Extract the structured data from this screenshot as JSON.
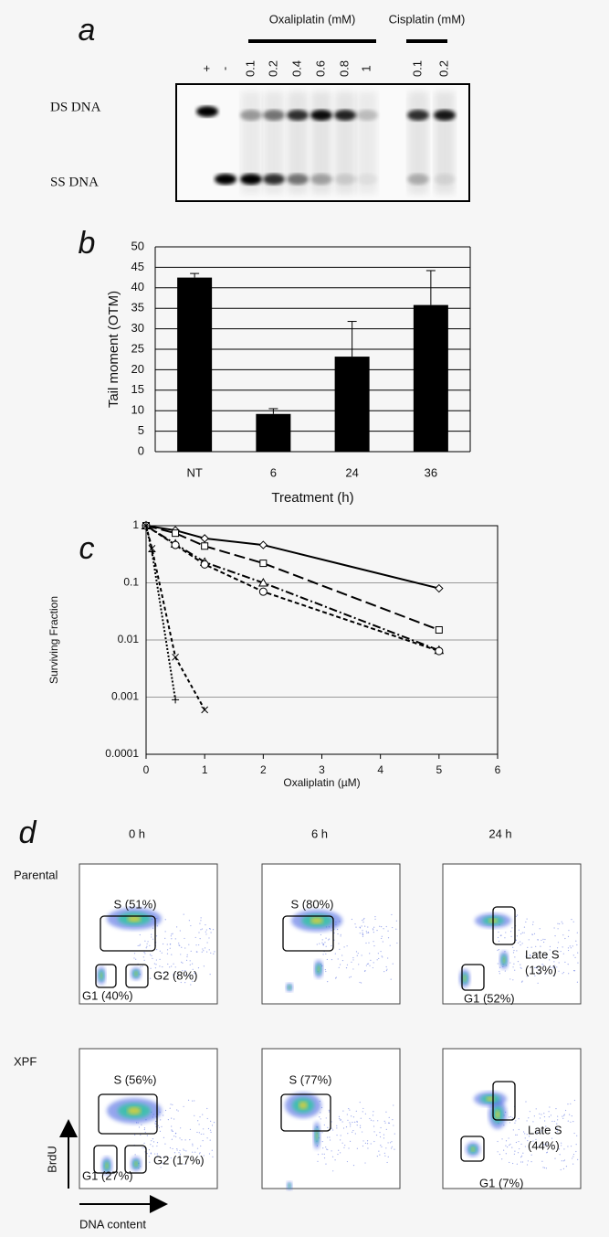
{
  "panel_labels": [
    "a",
    "b",
    "c",
    "d"
  ],
  "gel": {
    "groups": [
      "Oxaliplatin (mM)",
      "Cisplatin (mM)"
    ],
    "lanes": [
      "+",
      "-",
      "0.1",
      "0.2",
      "0.4",
      "0.6",
      "0.8",
      "1",
      "0.1",
      "0.2"
    ],
    "rows": [
      "DS DNA",
      "SS DNA"
    ]
  },
  "chart_data": [
    {
      "type": "bar",
      "categories": [
        "NT",
        "6",
        "24",
        "36"
      ],
      "values": [
        42.5,
        9.2,
        23.2,
        35.8
      ],
      "errors": [
        1,
        1.3,
        8.6,
        8.4
      ],
      "color": "#000000",
      "ylim": [
        0,
        50
      ],
      "yticks": [
        0,
        5,
        10,
        15,
        20,
        25,
        30,
        35,
        40,
        45,
        50
      ],
      "grid": true,
      "y_label": "Tail moment (OTM)",
      "x_label": "Treatment (h)"
    },
    {
      "type": "line",
      "log_y": true,
      "xlim": [
        0,
        6
      ],
      "xticks": [
        0,
        1,
        2,
        3,
        4,
        5,
        6
      ],
      "ylim": [
        0.0001,
        1
      ],
      "yticks": [
        0.0001,
        0.001,
        0.01,
        0.1,
        1
      ],
      "grid": true,
      "y_label": "Surviving Fraction",
      "x_label": "Oxaliplatin (µM)",
      "series": [
        {
          "marker": "diamond",
          "dash": "solid",
          "color": "#000000",
          "x": [
            0,
            0.5,
            1,
            2,
            5
          ],
          "values": [
            1,
            0.83,
            0.6,
            0.46,
            0.08
          ]
        },
        {
          "marker": "square",
          "dash": "long",
          "color": "#000000",
          "x": [
            0,
            0.5,
            1,
            2,
            5
          ],
          "values": [
            1,
            0.74,
            0.44,
            0.22,
            0.015
          ]
        },
        {
          "marker": "triangle",
          "dash": "dashdot",
          "color": "#000000",
          "x": [
            0,
            0.5,
            1,
            2,
            5
          ],
          "values": [
            1,
            0.48,
            0.23,
            0.1,
            0.0066
          ]
        },
        {
          "marker": "circle",
          "dash": "short",
          "color": "#000000",
          "x": [
            0,
            0.5,
            1,
            2,
            5
          ],
          "values": [
            1,
            0.46,
            0.21,
            0.07,
            0.0064
          ]
        },
        {
          "marker": "plus",
          "dash": "dotted",
          "color": "#000000",
          "x": [
            0,
            0.1,
            0.5
          ],
          "values": [
            1,
            0.35,
            0.0009
          ]
        },
        {
          "marker": "cross",
          "dash": "medium",
          "color": "#000000",
          "x": [
            0,
            0.1,
            0.5,
            1
          ],
          "values": [
            1,
            0.4,
            0.005,
            0.0006
          ]
        }
      ]
    }
  ],
  "flow": {
    "columns": [
      "0 h",
      "6 h",
      "24 h"
    ],
    "rows": [
      {
        "label": "Parental",
        "plots": [
          {
            "gates": [
              [
                "S (51%)"
              ],
              [
                "G1 (40%)"
              ],
              [
                "G2 (8%)"
              ]
            ]
          },
          {
            "gates": [
              [
                "S (80%)"
              ]
            ]
          },
          {
            "gates": [
              [
                "Late S",
                "(13%)"
              ],
              [
                "G1 (52%)"
              ]
            ]
          }
        ]
      },
      {
        "label": "XPF",
        "plots": [
          {
            "gates": [
              [
                "S (56%)"
              ],
              [
                "G1 (27%)"
              ],
              [
                "G2 (17%)"
              ]
            ]
          },
          {
            "gates": [
              [
                "S (77%)"
              ]
            ]
          },
          {
            "gates": [
              [
                "Late S",
                "(44%)"
              ],
              [
                "G1 (7%)"
              ]
            ]
          }
        ]
      }
    ],
    "y_axis": "BrdU",
    "x_axis": "DNA content"
  }
}
